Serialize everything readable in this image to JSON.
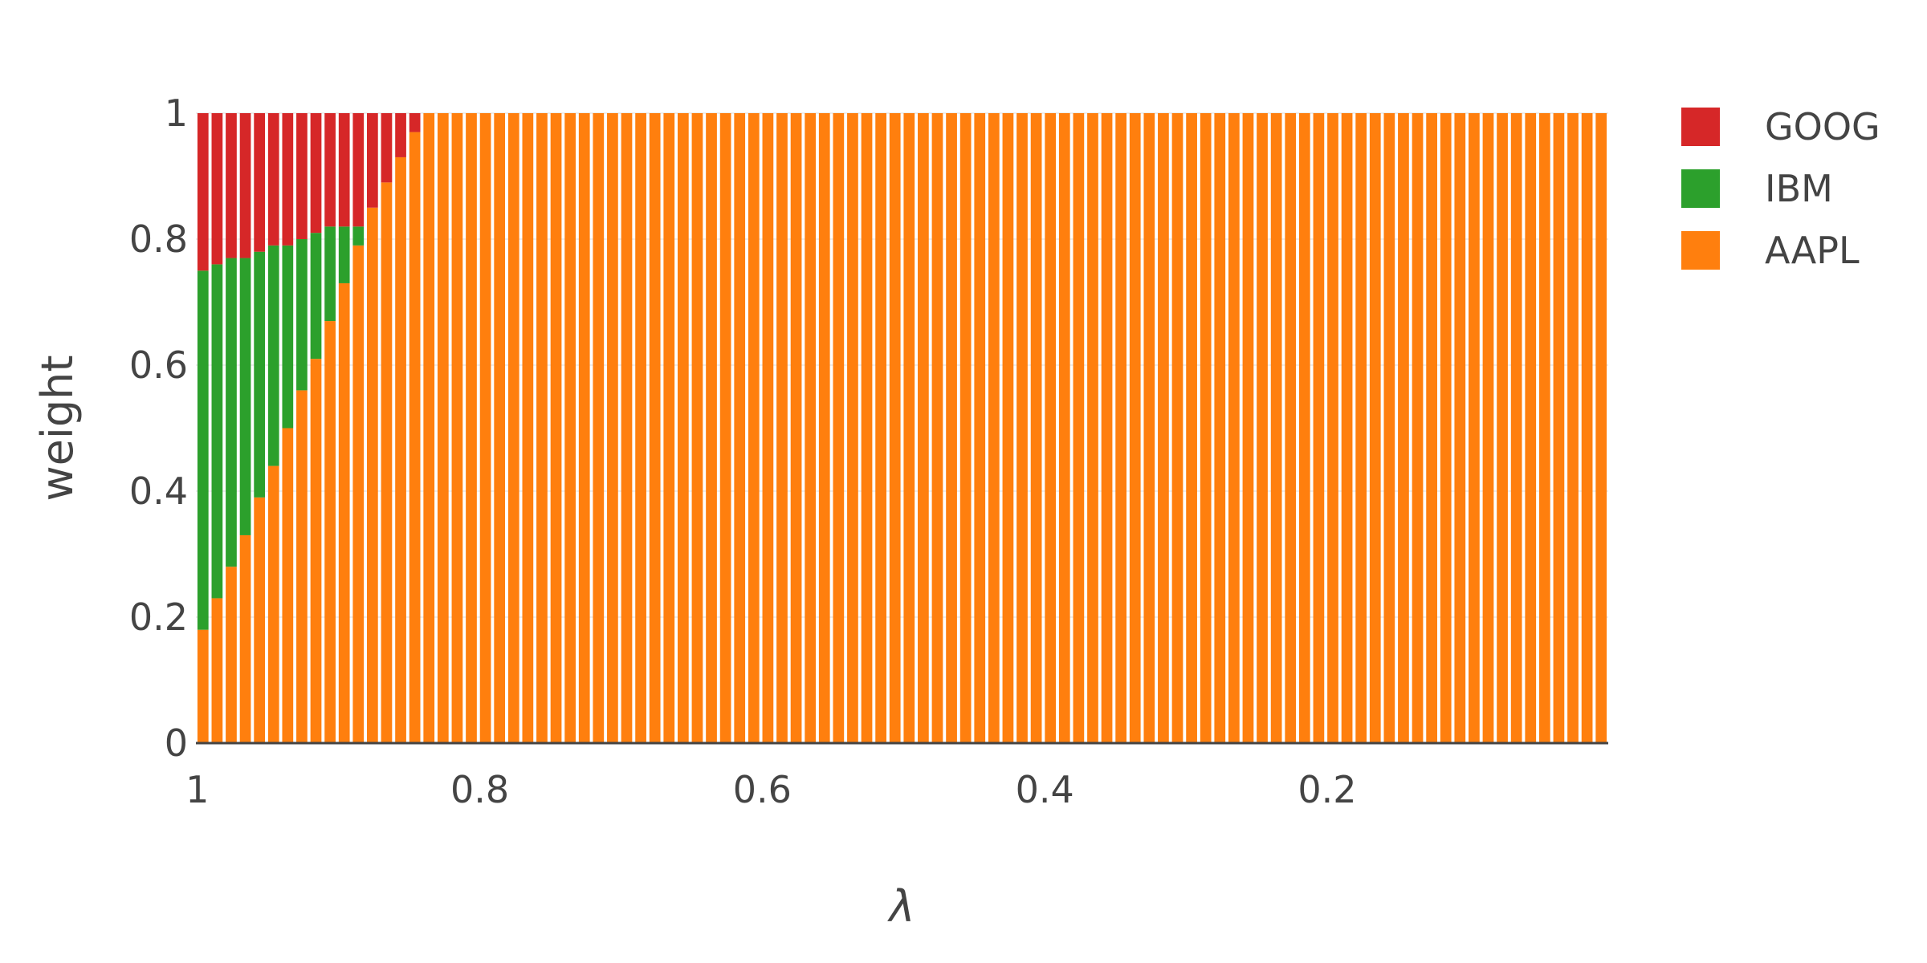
{
  "chart_data": {
    "type": "bar",
    "stacked": true,
    "title": "",
    "xlabel": "λ",
    "ylabel": "weight",
    "xlim": [
      1.0,
      0.0
    ],
    "ylim": [
      0,
      1
    ],
    "x_ticks": [
      {
        "value": 1.0,
        "label": "1"
      },
      {
        "value": 0.8,
        "label": "0.8"
      },
      {
        "value": 0.6,
        "label": "0.6"
      },
      {
        "value": 0.4,
        "label": "0.4"
      },
      {
        "value": 0.2,
        "label": "0.2"
      }
    ],
    "y_ticks": [
      {
        "value": 0,
        "label": "0"
      },
      {
        "value": 0.2,
        "label": "0.2"
      },
      {
        "value": 0.4,
        "label": "0.4"
      },
      {
        "value": 0.6,
        "label": "0.6"
      },
      {
        "value": 0.8,
        "label": "0.8"
      },
      {
        "value": 1,
        "label": "1"
      }
    ],
    "grid": true,
    "legend_position": "top-right",
    "bar_count": 100,
    "x_step": 0.01,
    "x_start": 1.0,
    "series": [
      {
        "name": "AAPL",
        "color": "#ff7f0e",
        "values": [
          0.18,
          0.23,
          0.28,
          0.33,
          0.39,
          0.44,
          0.5,
          0.56,
          0.61,
          0.67,
          0.73,
          0.79,
          0.85,
          0.89,
          0.93,
          0.97
        ],
        "fill_value_after": 1.0
      },
      {
        "name": "IBM",
        "color": "#2ca02c",
        "values": [
          0.57,
          0.53,
          0.49,
          0.44,
          0.39,
          0.35,
          0.29,
          0.24,
          0.2,
          0.15,
          0.09,
          0.03,
          0,
          0,
          0,
          0
        ],
        "fill_value_after": 0
      },
      {
        "name": "GOOG",
        "color": "#d62728",
        "values": [
          0.25,
          0.24,
          0.23,
          0.23,
          0.22,
          0.21,
          0.21,
          0.2,
          0.19,
          0.18,
          0.18,
          0.18,
          0.15,
          0.11,
          0.07,
          0.03
        ],
        "fill_value_after": 0
      }
    ],
    "legend_order": [
      "GOOG",
      "IBM",
      "AAPL"
    ]
  }
}
